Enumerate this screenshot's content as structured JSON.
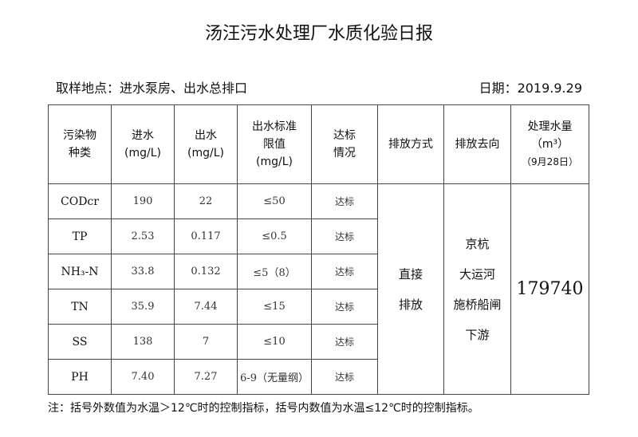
{
  "title": "汤汪污水处理厂水质化验日报",
  "location": "取样地点：进水泵房、出水总排口",
  "date": "日期：2019.9.29",
  "headers": {
    "pollutant": [
      "污染物",
      "种类"
    ],
    "inflow": [
      "进水",
      "(mg/L)"
    ],
    "outflow": [
      "出水",
      "(mg/L)"
    ],
    "limit": [
      "出水标准",
      "限值",
      "(mg/L)"
    ],
    "status": [
      "达标",
      "情况"
    ],
    "method": "排放方式",
    "destination": "排放去向",
    "volume": [
      "处理水量",
      "（m³）",
      "（9月28日）"
    ]
  },
  "rows": [
    {
      "name": "CODcr",
      "in": "190",
      "out": "22",
      "limit": "≤50",
      "status": "达标"
    },
    {
      "name": "TP",
      "in": "2.53",
      "out": "0.117",
      "limit": "≤0.5",
      "status": "达标"
    },
    {
      "name": "NH₃-N",
      "in": "33.8",
      "out": "0.132",
      "limit": "≤5（8）",
      "status": "达标"
    },
    {
      "name": "TN",
      "in": "35.9",
      "out": "7.44",
      "limit": "≤15",
      "status": "达标"
    },
    {
      "name": "SS",
      "in": "138",
      "out": "7",
      "limit": "≤10",
      "status": "达标"
    },
    {
      "name": "PH",
      "in": "7.40",
      "out": "7.27",
      "limit": "6-9（无量纲）",
      "status": "达标"
    }
  ],
  "method": [
    "直接",
    "排放"
  ],
  "destination": [
    "京杭",
    "大运河",
    "施桥船闸",
    "下游"
  ],
  "volume": "179740",
  "note": "注：括号外数值为水温＞12℃时的控制指标，括号内数值为水温≤12℃时的控制指标。"
}
